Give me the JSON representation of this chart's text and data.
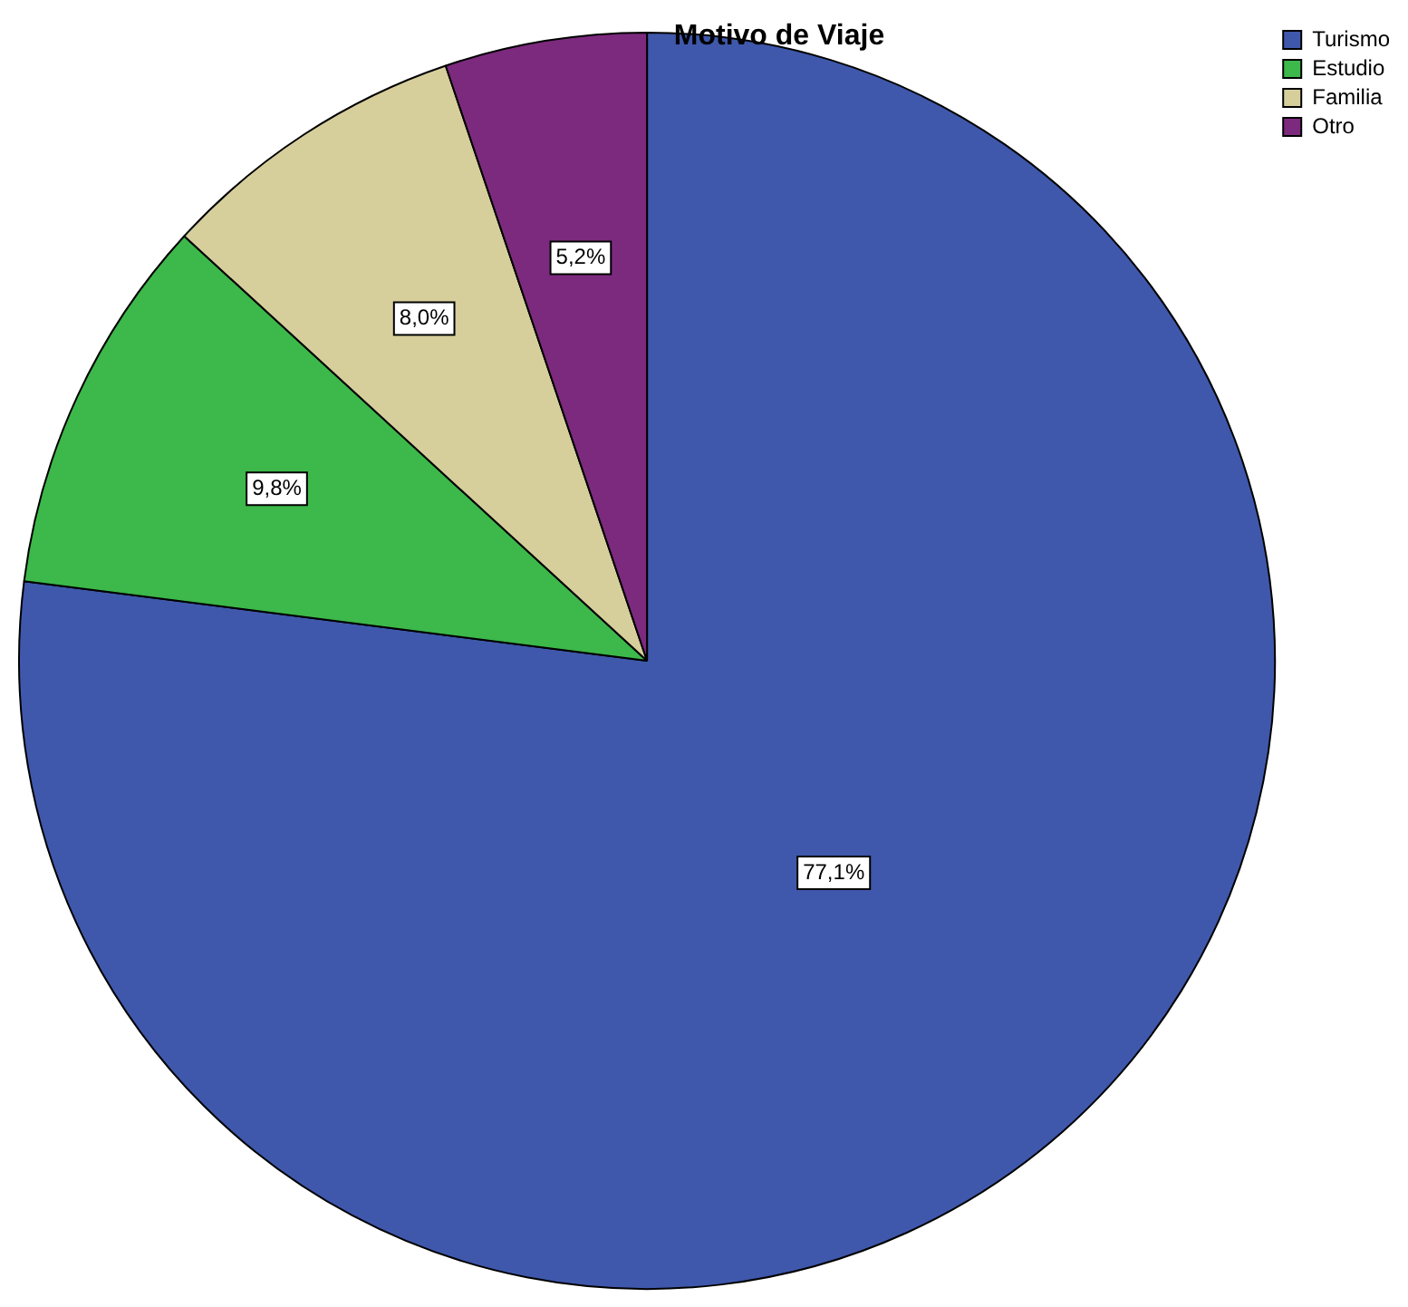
{
  "chart_data": {
    "type": "pie",
    "title": "Motivo de Viaje",
    "categories": [
      "Turismo",
      "Estudio",
      "Familia",
      "Otro"
    ],
    "values": [
      77.1,
      9.8,
      8.0,
      5.2
    ],
    "value_labels": [
      "77,1%",
      "9,8%",
      "8,0%",
      "5,2%"
    ],
    "colors": [
      "#3f58ac",
      "#3db84a",
      "#d6cf9c",
      "#7c2a7e"
    ],
    "legend": "top right"
  }
}
